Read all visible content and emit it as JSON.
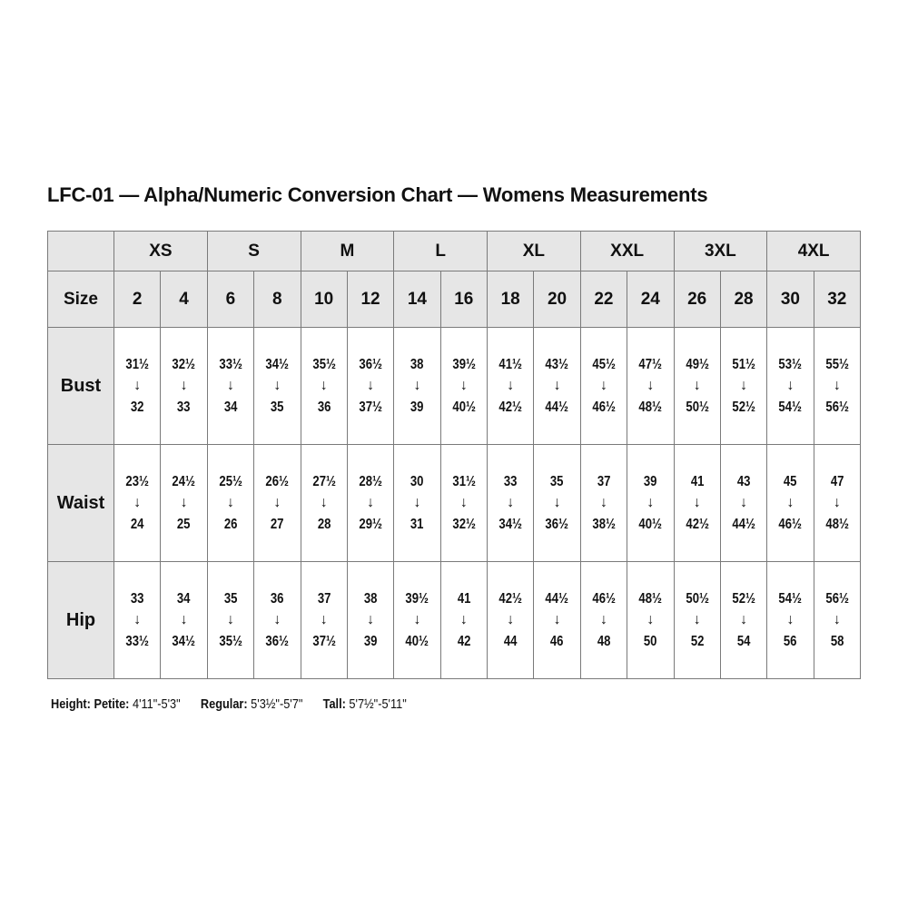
{
  "title": "LFC-01 — Alpha/Numeric Conversion Chart — Womens Measurements",
  "alpha_sizes": [
    "XS",
    "S",
    "M",
    "L",
    "XL",
    "XXL",
    "3XL",
    "4XL"
  ],
  "size_label": "Size",
  "numeric_sizes": [
    "2",
    "4",
    "6",
    "8",
    "10",
    "12",
    "14",
    "16",
    "18",
    "20",
    "22",
    "24",
    "26",
    "28",
    "30",
    "32"
  ],
  "arrow_icon": "down-arrow",
  "measurements": [
    {
      "label": "Bust",
      "from": [
        "31½",
        "32½",
        "33½",
        "34½",
        "35½",
        "36½",
        "38",
        "39½",
        "41½",
        "43½",
        "45½",
        "47½",
        "49½",
        "51½",
        "53½",
        "55½"
      ],
      "to": [
        "32",
        "33",
        "34",
        "35",
        "36",
        "37½",
        "39",
        "40½",
        "42½",
        "44½",
        "46½",
        "48½",
        "50½",
        "52½",
        "54½",
        "56½"
      ]
    },
    {
      "label": "Waist",
      "from": [
        "23½",
        "24½",
        "25½",
        "26½",
        "27½",
        "28½",
        "30",
        "31½",
        "33",
        "35",
        "37",
        "39",
        "41",
        "43",
        "45",
        "47"
      ],
      "to": [
        "24",
        "25",
        "26",
        "27",
        "28",
        "29½",
        "31",
        "32½",
        "34½",
        "36½",
        "38½",
        "40½",
        "42½",
        "44½",
        "46½",
        "48½"
      ]
    },
    {
      "label": "Hip",
      "from": [
        "33",
        "34",
        "35",
        "36",
        "37",
        "38",
        "39½",
        "41",
        "42½",
        "44½",
        "46½",
        "48½",
        "50½",
        "52½",
        "54½",
        "56½"
      ],
      "to": [
        "33½",
        "34½",
        "35½",
        "36½",
        "37½",
        "39",
        "40½",
        "42",
        "44",
        "46",
        "48",
        "50",
        "52",
        "54",
        "56",
        "58"
      ]
    }
  ],
  "height_note": {
    "label": "Height:",
    "items": [
      {
        "name": "Petite:",
        "value": "4'11\"-5'3\""
      },
      {
        "name": "Regular:",
        "value": "5'3½\"-5'7\""
      },
      {
        "name": "Tall:",
        "value": "5'7½\"-5'11\""
      }
    ]
  },
  "colors": {
    "header_bg": "#e6e6e6",
    "border": "#7a7a7a",
    "text": "#111111"
  }
}
